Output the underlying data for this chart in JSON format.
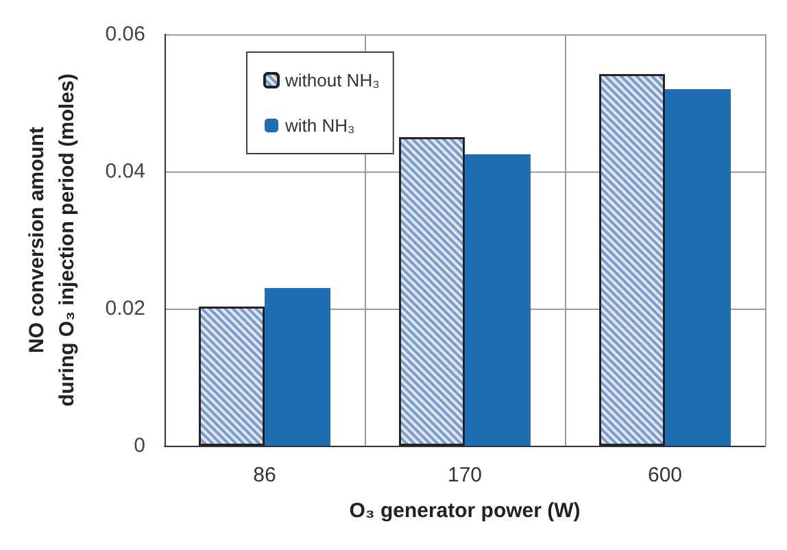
{
  "chart_data": {
    "type": "bar",
    "xlabel": "O₃ generator power (W)",
    "ylabel": "NO conversion amount\nduring O₃ injection period (moles)",
    "categories": [
      "86",
      "170",
      "600"
    ],
    "series": [
      {
        "name": "without NH₃",
        "color": "#7d9cc8",
        "values": [
          0.0203,
          0.045,
          0.0542
        ]
      },
      {
        "name": "with NH₃",
        "color": "#1f6db3",
        "values": [
          0.023,
          0.0425,
          0.052
        ]
      }
    ],
    "ylim": [
      0,
      0.06
    ],
    "yticks": [
      0,
      0.02,
      0.04,
      0.06
    ],
    "grid": true,
    "legend": "top left"
  }
}
